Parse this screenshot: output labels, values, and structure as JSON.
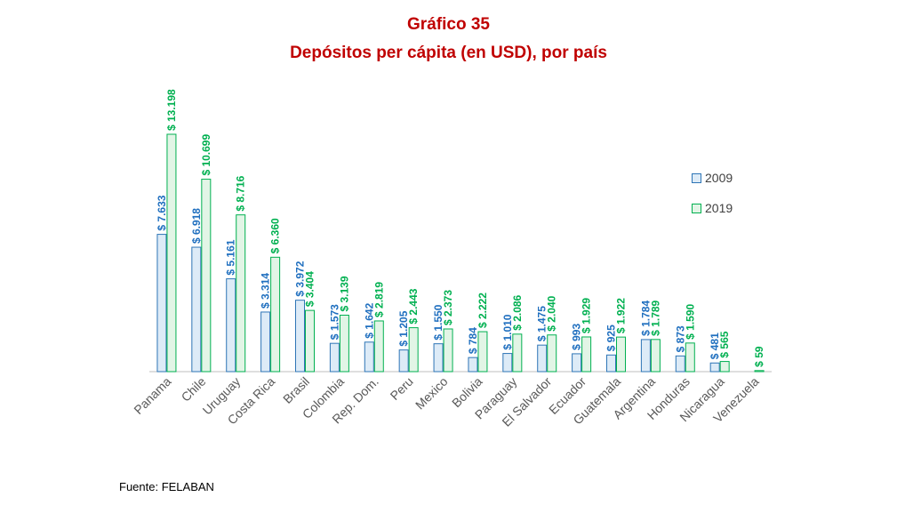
{
  "title": "Gráfico 35",
  "subtitle": "Depósitos per cápita (en USD), por país",
  "source": "Fuente: FELABAN",
  "colors": {
    "title": "#c00000",
    "s2009_fill": "#ddebf7",
    "s2009_stroke": "#2e75b6",
    "s2009_label": "#1f6fbf",
    "s2019_fill": "#e2f5e6",
    "s2019_stroke": "#00b050",
    "s2019_label": "#00b050",
    "axis": "#bfbfbf",
    "category": "#595959"
  },
  "chart_data": {
    "type": "bar",
    "categories": [
      "Panama",
      "Chile",
      "Uruguay",
      "Costa Rica",
      "Brasil",
      "Colombia",
      "Rep. Dom.",
      "Peru",
      "Mexico",
      "Bolivia",
      "Paraguay",
      "El Salvador",
      "Ecuador",
      "Guatemala",
      "Argentina",
      "Honduras",
      "Nicaragua",
      "Venezuela"
    ],
    "series": [
      {
        "name": "2009",
        "values": [
          7633,
          6918,
          5161,
          3314,
          3972,
          1573,
          1642,
          1205,
          1550,
          784,
          1010,
          1475,
          993,
          925,
          1784,
          873,
          481,
          null
        ],
        "labels": [
          "$ 7.633",
          "$ 6.918",
          "$ 5.161",
          "$ 3.314",
          "$ 3.972",
          "$ 1.573",
          "$ 1.642",
          "$ 1.205",
          "$ 1.550",
          "$ 784",
          "$ 1.010",
          "$ 1.475",
          "$ 993",
          "$ 925",
          "$ 1.784",
          "$ 873",
          "$ 481",
          ""
        ]
      },
      {
        "name": "2019",
        "values": [
          13198,
          10699,
          8716,
          6360,
          3404,
          3139,
          2819,
          2443,
          2373,
          2222,
          2086,
          2040,
          1929,
          1922,
          1789,
          1590,
          565,
          59
        ],
        "labels": [
          "$ 13.198",
          "$ 10.699",
          "$ 8.716",
          "$ 6.360",
          "$ 3.404",
          "$ 3.139",
          "$ 2.819",
          "$ 2.443",
          "$ 2.373",
          "$ 2.222",
          "$ 2.086",
          "$ 2.040",
          "$ 1.929",
          "$ 1.922",
          "$ 1.789",
          "$ 1.590",
          "$ 565",
          "$ 59"
        ]
      }
    ],
    "ylim": [
      0,
      13198
    ],
    "grid": false,
    "legend": "right"
  }
}
